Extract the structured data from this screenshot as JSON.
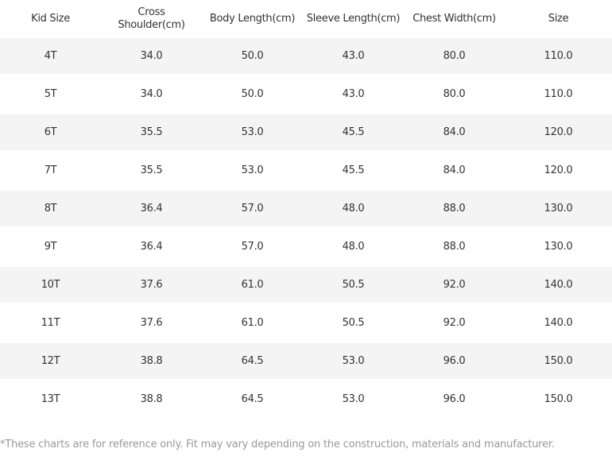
{
  "table": {
    "headers": [
      "Kid Size",
      "Cross Shoulder(cm)",
      "Body Length(cm)",
      "Sleeve Length(cm)",
      "Chest Width(cm)",
      "Size"
    ],
    "rows": [
      [
        "4T",
        "34.0",
        "50.0",
        "43.0",
        "80.0",
        "110.0"
      ],
      [
        "5T",
        "34.0",
        "50.0",
        "43.0",
        "80.0",
        "110.0"
      ],
      [
        "6T",
        "35.5",
        "53.0",
        "45.5",
        "84.0",
        "120.0"
      ],
      [
        "7T",
        "35.5",
        "53.0",
        "45.5",
        "84.0",
        "120.0"
      ],
      [
        "8T",
        "36.4",
        "57.0",
        "48.0",
        "88.0",
        "130.0"
      ],
      [
        "9T",
        "36.4",
        "57.0",
        "48.0",
        "88.0",
        "130.0"
      ],
      [
        "10T",
        "37.6",
        "61.0",
        "50.5",
        "92.0",
        "140.0"
      ],
      [
        "11T",
        "37.6",
        "61.0",
        "50.5",
        "92.0",
        "140.0"
      ],
      [
        "12T",
        "38.8",
        "64.5",
        "53.0",
        "96.0",
        "150.0"
      ],
      [
        "13T",
        "38.8",
        "64.5",
        "53.0",
        "96.0",
        "150.0"
      ]
    ]
  },
  "footnote": "*These charts are for reference only. Fit may vary depending on the construction, materials and manufacturer.",
  "colors": {
    "stripe": "#f4f4f4",
    "text": "#333333",
    "footnote_text": "#999999"
  }
}
